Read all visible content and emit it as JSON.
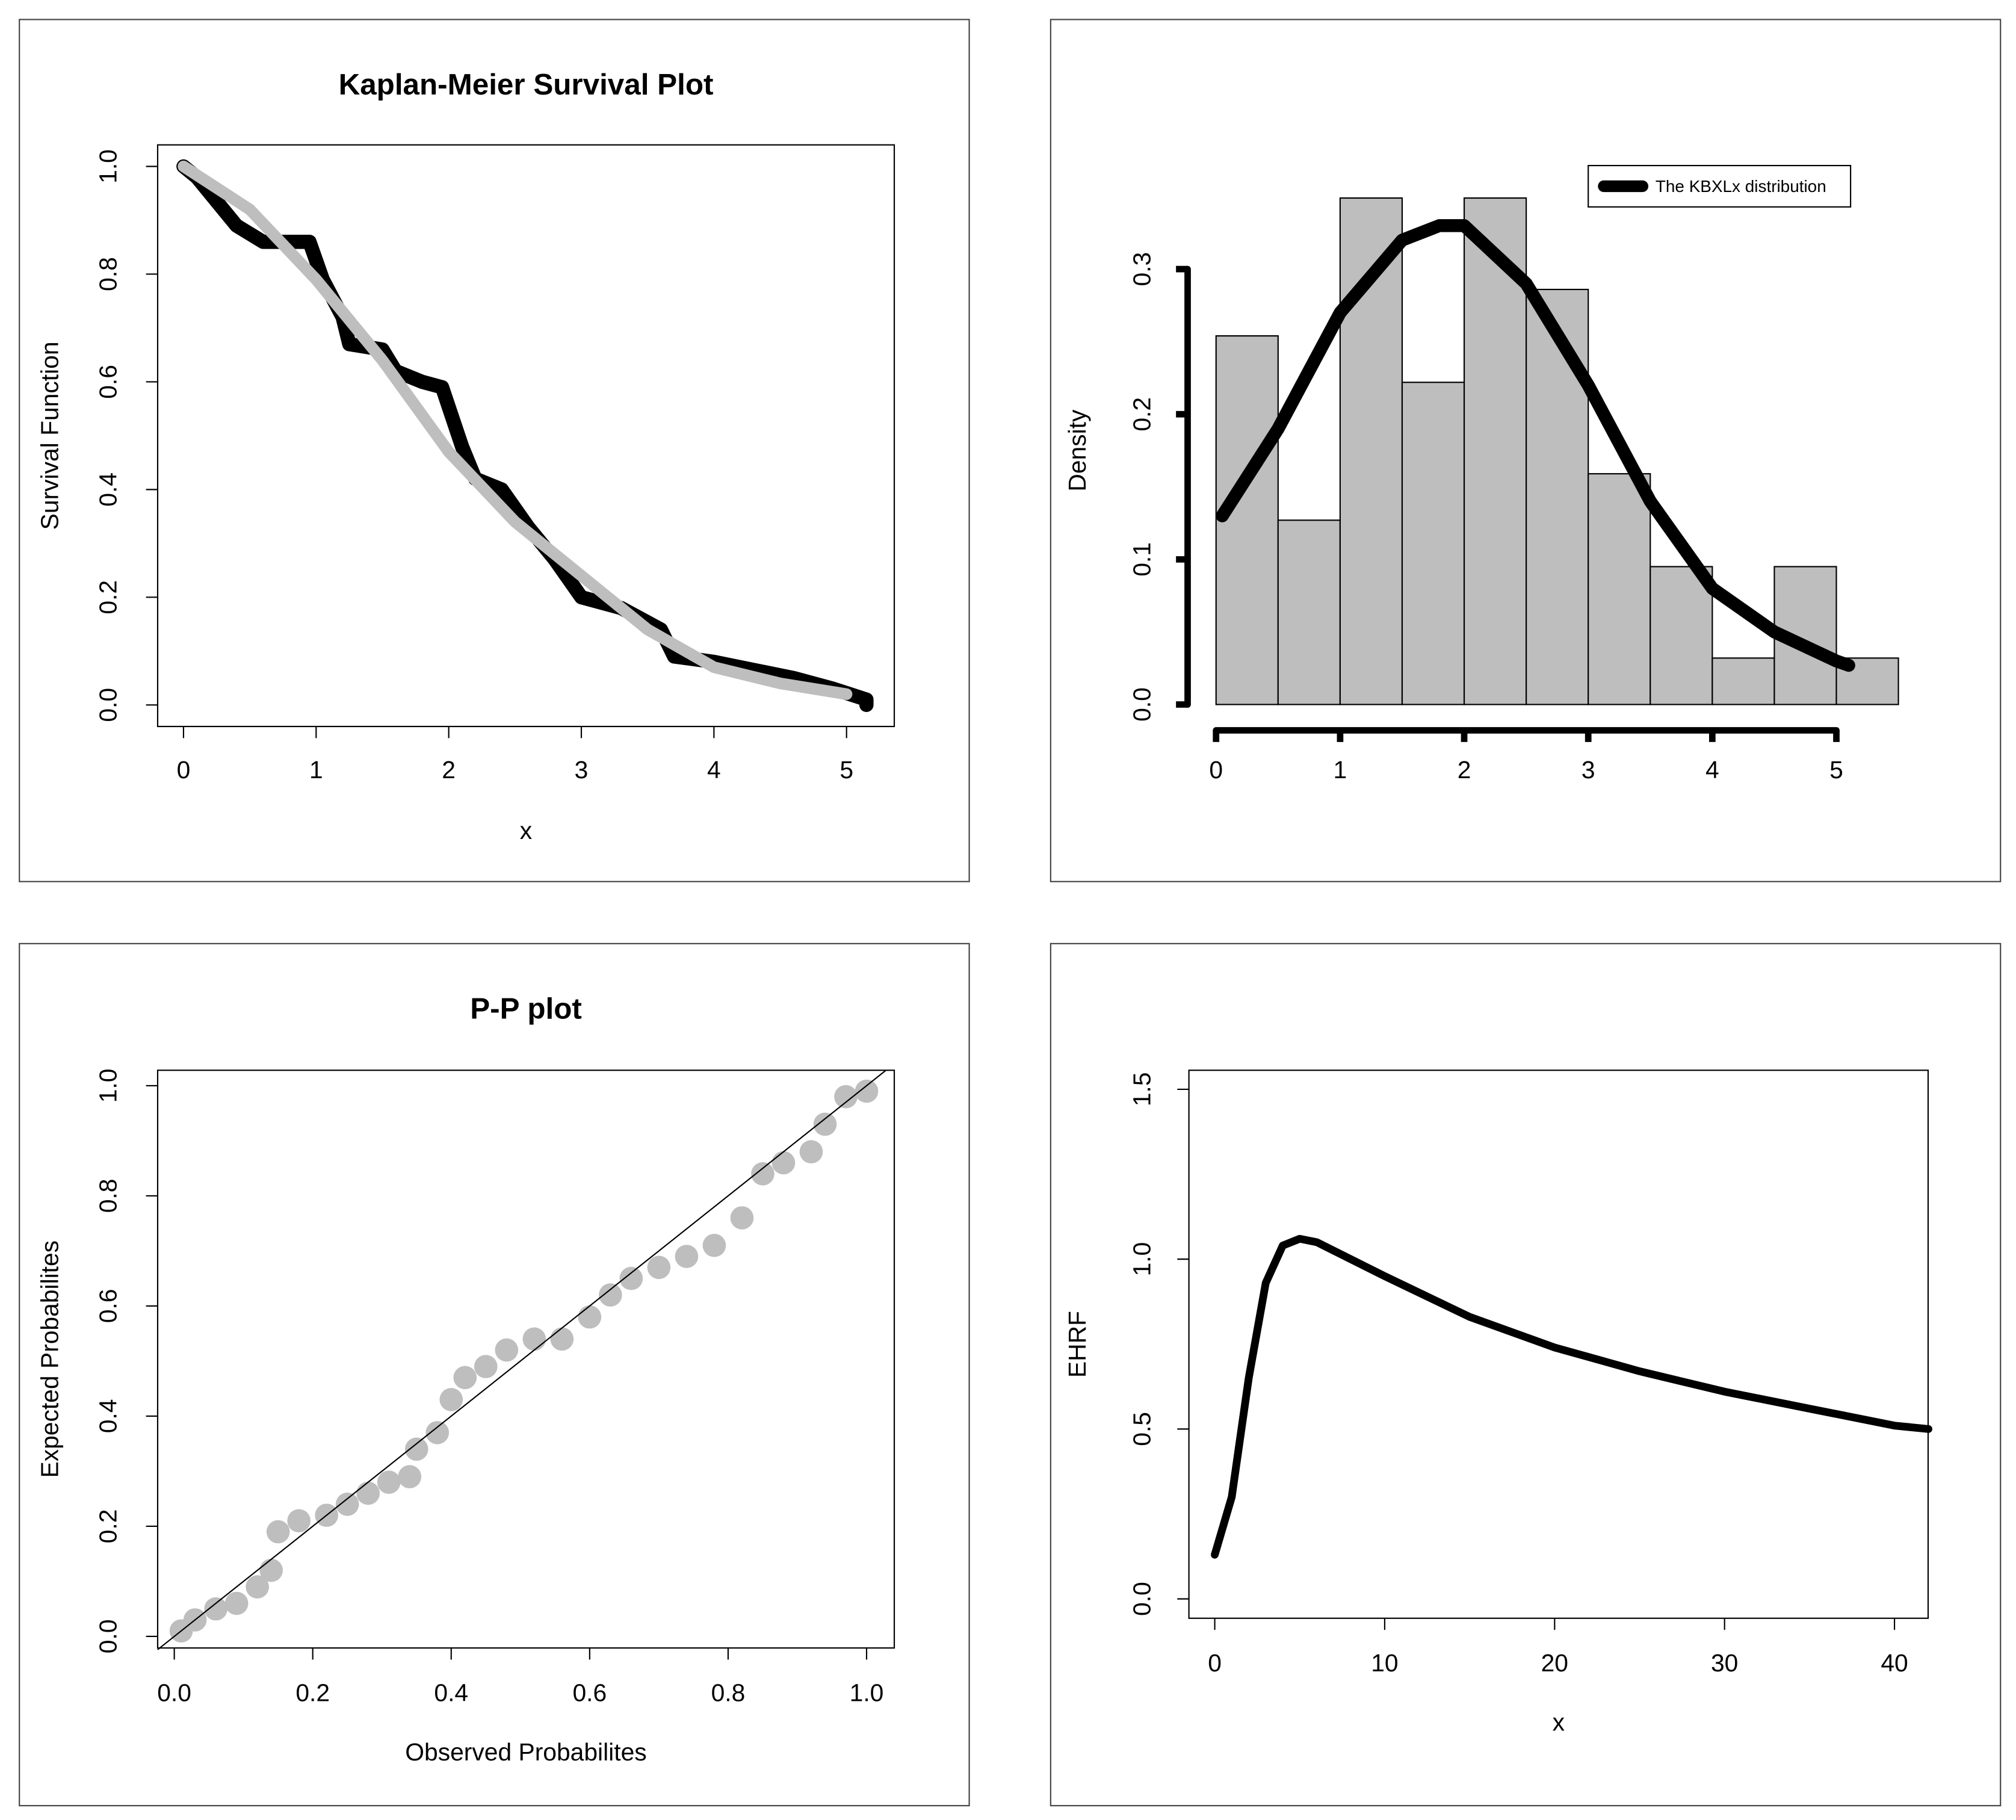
{
  "chart_data": [
    {
      "type": "line",
      "title": "Kaplan-Meier Survival Plot",
      "xlabel": "x",
      "ylabel": "Survival  Function",
      "xlim": [
        -0.195,
        5.36
      ],
      "ylim": [
        -0.04,
        1.04
      ],
      "xticks": [
        0,
        1,
        2,
        3,
        4,
        5
      ],
      "yticks": [
        {
          "value": 0,
          "label": "0.0"
        },
        {
          "value": 0.2,
          "label": "0.2"
        },
        {
          "value": 0.4,
          "label": "0.4"
        },
        {
          "value": 0.6,
          "label": "0.6"
        },
        {
          "value": 0.8,
          "label": "0.8"
        },
        {
          "value": 1,
          "label": "1.0"
        }
      ],
      "series": [
        {
          "color": "#000000",
          "x": [
            0,
            0.1,
            0.3,
            0.4,
            0.6,
            0.95,
            1.05,
            1.2,
            1.25,
            1.5,
            1.6,
            1.8,
            1.95,
            2.1,
            2.2,
            2.4,
            2.6,
            2.8,
            3.0,
            3.3,
            3.6,
            3.7,
            4.0,
            4.2,
            4.6,
            4.9,
            5.15,
            5.15
          ],
          "values": [
            1,
            0.98,
            0.92,
            0.89,
            0.86,
            0.86,
            0.79,
            0.72,
            0.67,
            0.66,
            0.62,
            0.6,
            0.59,
            0.48,
            0.42,
            0.4,
            0.33,
            0.27,
            0.2,
            0.18,
            0.14,
            0.09,
            0.08,
            0.07,
            0.05,
            0.03,
            0.01,
            0
          ]
        },
        {
          "color": "#bebebe",
          "x": [
            0,
            0.5,
            1,
            1.5,
            2,
            2.5,
            3,
            3.5,
            4,
            4.5,
            5
          ],
          "values": [
            1,
            0.92,
            0.79,
            0.64,
            0.47,
            0.34,
            0.24,
            0.14,
            0.07,
            0.04,
            0.02
          ]
        }
      ]
    },
    {
      "type": "histogram",
      "ylabel": "Density",
      "legend": "topright",
      "bins": [
        0,
        0.5,
        1,
        1.5,
        2,
        2.5,
        3,
        3.5,
        4,
        4.5,
        5,
        5.5
      ],
      "values": [
        0.254,
        0.127,
        0.349,
        0.222,
        0.349,
        0.286,
        0.159,
        0.095,
        0.032,
        0.095,
        0.032
      ],
      "color": "#bebebe",
      "xlim": [
        0,
        5.5
      ],
      "ylim": [
        0,
        0.35
      ],
      "xticks": [
        0,
        1,
        2,
        3,
        4,
        5
      ],
      "yticks": [
        {
          "value": 0,
          "label": "0.0"
        },
        {
          "value": 0.1,
          "label": "0.1"
        },
        {
          "value": 0.2,
          "label": "0.2"
        },
        {
          "value": 0.3,
          "label": "0.3"
        }
      ],
      "series": [
        {
          "name": "The KBXLx distribution",
          "color": "#000000",
          "x": [
            0.05,
            0.5,
            1,
            1.5,
            1.8,
            2,
            2.5,
            3,
            3.5,
            4,
            4.5,
            5,
            5.1
          ],
          "values": [
            0.13,
            0.19,
            0.27,
            0.32,
            0.33,
            0.33,
            0.29,
            0.22,
            0.14,
            0.08,
            0.05,
            0.03,
            0.027
          ]
        }
      ]
    },
    {
      "type": "scatter",
      "title": "P-P plot",
      "xlabel": "Observed Probabilites",
      "ylabel": "Expected Probabilites",
      "xlim": [
        -0.024,
        1.04
      ],
      "ylim": [
        -0.021,
        1.028
      ],
      "xticks": [
        {
          "value": 0,
          "label": "0.0"
        },
        {
          "value": 0.2,
          "label": "0.2"
        },
        {
          "value": 0.4,
          "label": "0.4"
        },
        {
          "value": 0.6,
          "label": "0.6"
        },
        {
          "value": 0.8,
          "label": "0.8"
        },
        {
          "value": 1,
          "label": "1.0"
        }
      ],
      "yticks": [
        {
          "value": 0,
          "label": "0.0"
        },
        {
          "value": 0.2,
          "label": "0.2"
        },
        {
          "value": 0.4,
          "label": "0.4"
        },
        {
          "value": 0.6,
          "label": "0.6"
        },
        {
          "value": 0.8,
          "label": "0.8"
        },
        {
          "value": 1,
          "label": "1.0"
        }
      ],
      "series": [
        {
          "color": "#bebebe",
          "x": [
            0.01,
            0.03,
            0.06,
            0.09,
            0.12,
            0.14,
            0.15,
            0.18,
            0.22,
            0.25,
            0.28,
            0.31,
            0.34,
            0.35,
            0.38,
            0.4,
            0.42,
            0.45,
            0.48,
            0.52,
            0.56,
            0.6,
            0.63,
            0.66,
            0.7,
            0.74,
            0.78,
            0.82,
            0.85,
            0.88,
            0.92,
            0.94,
            0.97,
            1.0
          ],
          "values": [
            0.01,
            0.03,
            0.05,
            0.06,
            0.09,
            0.12,
            0.19,
            0.21,
            0.22,
            0.24,
            0.26,
            0.28,
            0.29,
            0.34,
            0.37,
            0.43,
            0.47,
            0.49,
            0.52,
            0.54,
            0.54,
            0.58,
            0.62,
            0.65,
            0.67,
            0.69,
            0.71,
            0.76,
            0.84,
            0.86,
            0.88,
            0.93,
            0.98,
            0.99
          ]
        }
      ]
    },
    {
      "type": "line",
      "xlabel": "x",
      "ylabel": "EHRF",
      "xlim": [
        -1.52,
        41.98
      ],
      "ylim": [
        -0.057,
        1.556
      ],
      "xticks": [
        0,
        10,
        20,
        30,
        40
      ],
      "yticks": [
        {
          "value": 0,
          "label": "0.0"
        },
        {
          "value": 0.5,
          "label": "0.5"
        },
        {
          "value": 1,
          "label": "1.0"
        },
        {
          "value": 1.5,
          "label": "1.5"
        }
      ],
      "series": [
        {
          "color": "#000000",
          "x": [
            0,
            1,
            2,
            3,
            4,
            5,
            6,
            8,
            10,
            15,
            20,
            25,
            30,
            35,
            40,
            42
          ],
          "values": [
            0.13,
            0.3,
            0.65,
            0.93,
            1.04,
            1.06,
            1.05,
            1.0,
            0.95,
            0.83,
            0.74,
            0.67,
            0.61,
            0.56,
            0.51,
            0.5
          ]
        }
      ]
    }
  ]
}
